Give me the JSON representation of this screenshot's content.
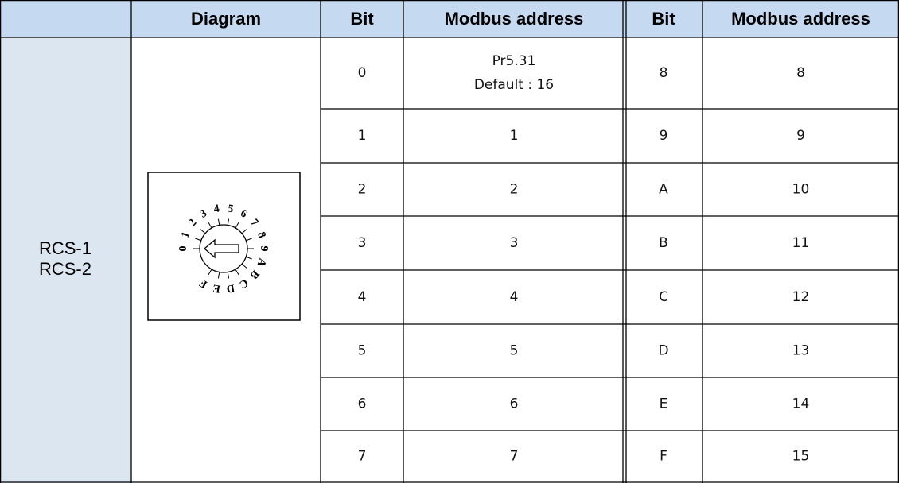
{
  "table": {
    "header": [
      "Diagram",
      "Bit",
      "Modbus address",
      "Bit",
      "Modbus address"
    ],
    "row_label": [
      "RCS-1",
      "RCS-2"
    ],
    "dial_labels": [
      "0",
      "1",
      "2",
      "3",
      "4",
      "5",
      "6",
      "7",
      "8",
      "9",
      "A",
      "B",
      "C",
      "D",
      "E",
      "F"
    ],
    "rows": [
      [
        "0",
        [
          "Pr5.31",
          "Default : 16"
        ],
        "8",
        "8"
      ],
      [
        "1",
        "1",
        "9",
        "9"
      ],
      [
        "2",
        "2",
        "A",
        "10"
      ],
      [
        "3",
        "3",
        "B",
        "11"
      ],
      [
        "4",
        "4",
        "C",
        "12"
      ],
      [
        "5",
        "5",
        "D",
        "13"
      ],
      [
        "6",
        "6",
        "E",
        "14"
      ],
      [
        "7",
        "7",
        "F",
        "15"
      ]
    ]
  }
}
